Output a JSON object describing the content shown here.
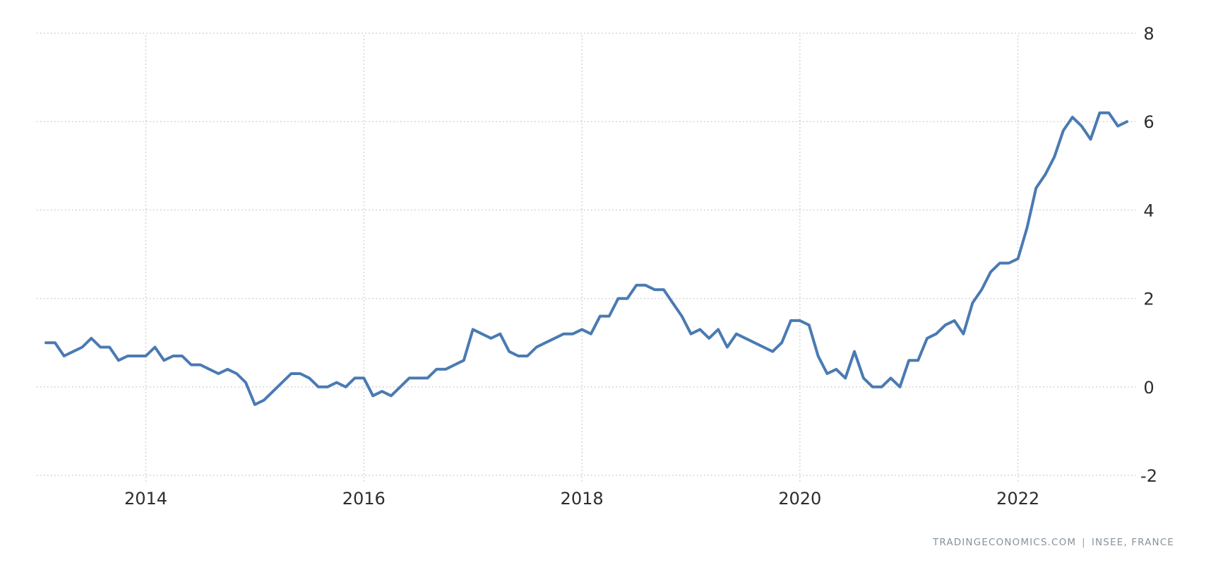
{
  "chart_data": {
    "type": "line",
    "title": "",
    "xlabel": "",
    "ylabel": "",
    "frequency": "monthly",
    "start_month": "2013-02",
    "end_month": "2023-01",
    "values": [
      1.0,
      1.0,
      0.7,
      0.8,
      0.9,
      1.1,
      0.9,
      0.9,
      0.6,
      0.7,
      0.7,
      0.7,
      0.9,
      0.6,
      0.7,
      0.7,
      0.5,
      0.5,
      0.4,
      0.3,
      0.4,
      0.3,
      0.1,
      -0.4,
      -0.3,
      -0.1,
      0.1,
      0.3,
      0.3,
      0.2,
      0.0,
      0.0,
      0.1,
      0.0,
      0.2,
      0.2,
      -0.2,
      -0.1,
      -0.2,
      0.0,
      0.2,
      0.2,
      0.2,
      0.4,
      0.4,
      0.5,
      0.6,
      1.3,
      1.2,
      1.1,
      1.2,
      0.8,
      0.7,
      0.7,
      0.9,
      1.0,
      1.1,
      1.2,
      1.2,
      1.3,
      1.2,
      1.6,
      1.6,
      2.0,
      2.0,
      2.3,
      2.3,
      2.2,
      2.2,
      1.9,
      1.6,
      1.2,
      1.3,
      1.1,
      1.3,
      0.9,
      1.2,
      1.1,
      1.0,
      0.9,
      0.8,
      1.0,
      1.5,
      1.5,
      1.4,
      0.7,
      0.3,
      0.4,
      0.2,
      0.8,
      0.2,
      0.0,
      0.0,
      0.2,
      0.0,
      0.6,
      0.6,
      1.1,
      1.2,
      1.4,
      1.5,
      1.2,
      1.9,
      2.2,
      2.6,
      2.8,
      2.8,
      2.9,
      3.6,
      4.5,
      4.8,
      5.2,
      5.8,
      6.1,
      5.9,
      5.6,
      6.2,
      6.2,
      5.9,
      6.0
    ],
    "x_tick_labels": [
      "2014",
      "2016",
      "2018",
      "2020",
      "2022"
    ],
    "x_tick_month_indices": [
      11,
      35,
      59,
      83,
      107
    ],
    "y_tick_labels": [
      "8",
      "6",
      "4",
      "2",
      "0",
      "-2"
    ],
    "y_ticks": [
      8,
      6,
      4,
      2,
      0,
      -2
    ],
    "ylim": [
      -2,
      8
    ],
    "grid": "dotted",
    "legend": "none",
    "line_color": "#4a7ab2",
    "grid_color": "#cdcdcd",
    "axis_label_color": "#2d2d2d"
  },
  "attribution": {
    "watermark": "TRADINGECONOMICS.COM",
    "separator": "|",
    "source": "INSEE, FRANCE"
  }
}
